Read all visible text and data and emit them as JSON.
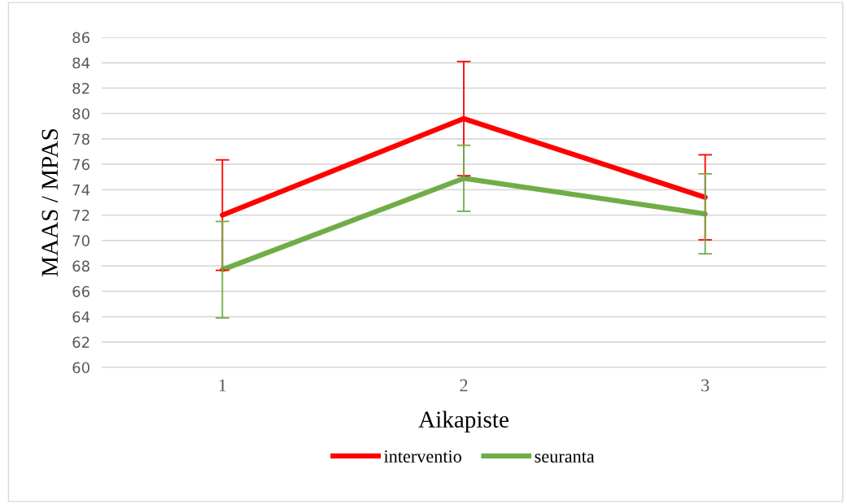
{
  "chart_data": {
    "type": "line",
    "xlabel": "Aikapiste",
    "ylabel": "MAAS / MPAS",
    "categories": [
      "1",
      "2",
      "3"
    ],
    "series": [
      {
        "name": "interventio",
        "color": "#ff0000",
        "values": [
          72.0,
          79.6,
          73.4
        ],
        "errors": [
          4.35,
          4.5,
          3.35
        ]
      },
      {
        "name": "seuranta",
        "color": "#70ad47",
        "values": [
          67.7,
          74.9,
          72.1
        ],
        "errors": [
          3.8,
          2.6,
          3.15
        ]
      }
    ],
    "ylim": [
      60,
      86
    ],
    "yticks": [
      60,
      62,
      64,
      66,
      68,
      70,
      72,
      74,
      76,
      78,
      80,
      82,
      84,
      86
    ],
    "grid": "y",
    "legend": "bottom",
    "marker": "none",
    "line_style": "solid"
  }
}
